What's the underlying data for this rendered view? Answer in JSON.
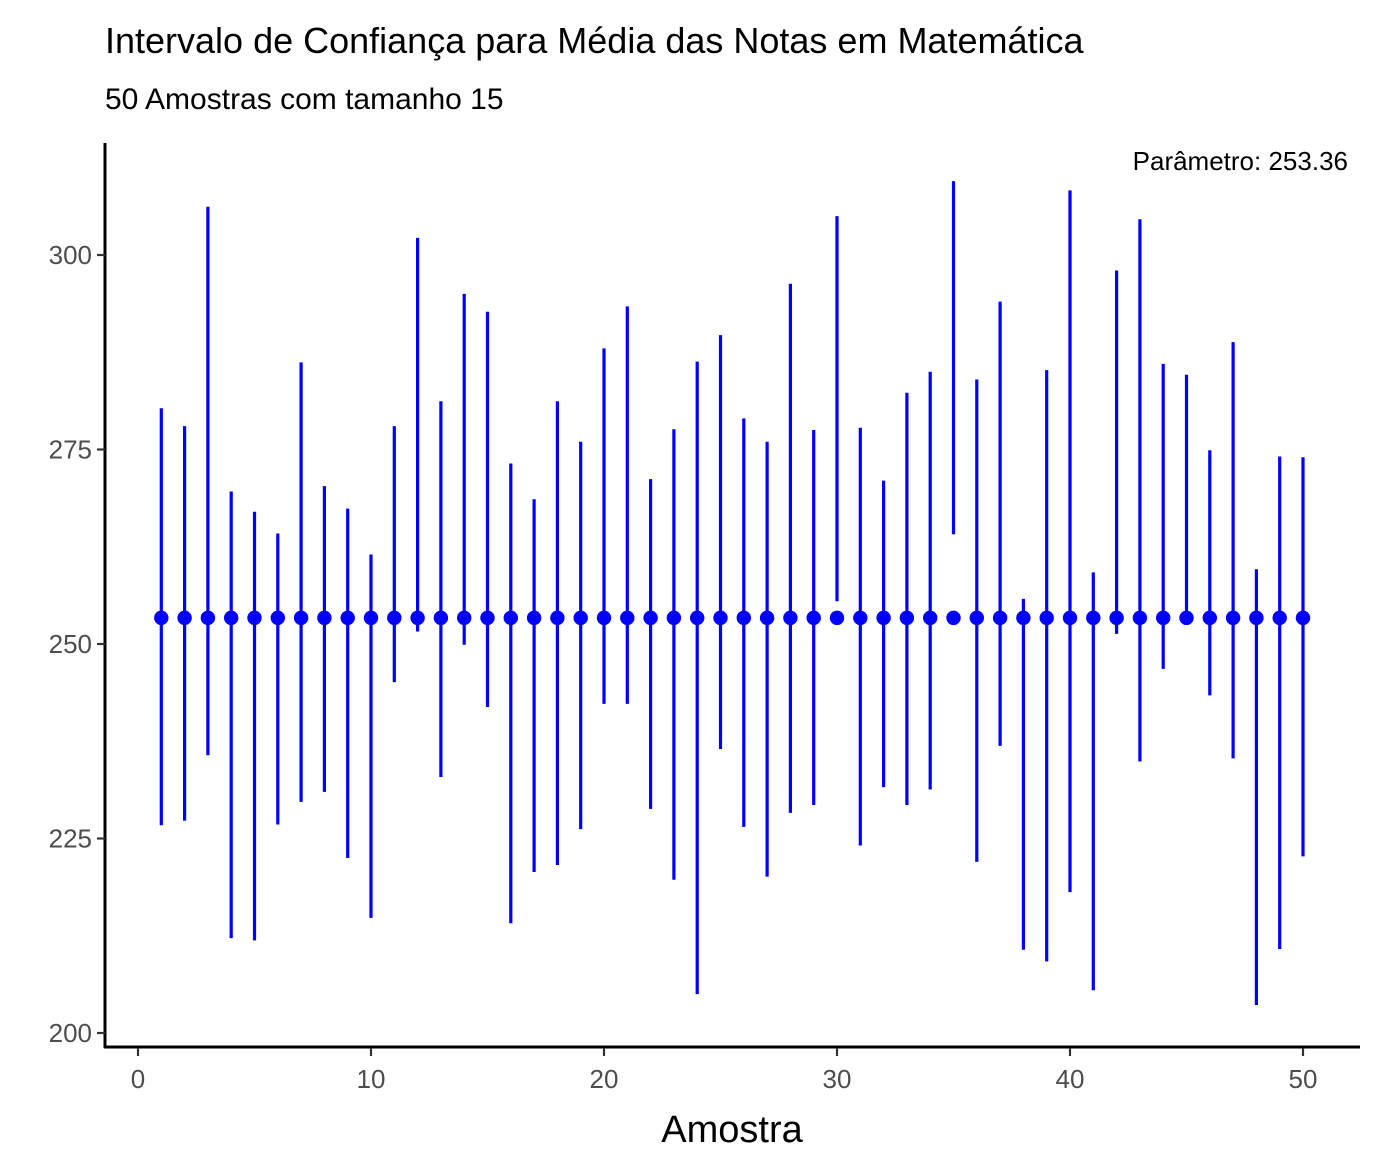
{
  "chart_data": {
    "type": "errorbar",
    "title": "Intervalo de Confiança para Média das Notas em Matemática",
    "subtitle": "50 Amostras com tamanho 15",
    "xlabel": "Amostra",
    "ylabel": "",
    "xlim": [
      0,
      50
    ],
    "ylim": [
      200,
      310
    ],
    "x_ticks": [
      0,
      10,
      20,
      30,
      40,
      50
    ],
    "y_ticks": [
      200,
      225,
      250,
      275,
      300
    ],
    "grid": false,
    "parameter_label": "Parâmetro: 253.36",
    "parameter": 253.36,
    "colors": {
      "series": "#0000ff",
      "axis": "#000000",
      "tick_text": "#4d4d4d"
    },
    "x": [
      1,
      2,
      3,
      4,
      5,
      6,
      7,
      8,
      9,
      10,
      11,
      12,
      13,
      14,
      15,
      16,
      17,
      18,
      19,
      20,
      21,
      22,
      23,
      24,
      25,
      26,
      27,
      28,
      29,
      30,
      31,
      32,
      33,
      34,
      35,
      36,
      37,
      38,
      39,
      40,
      41,
      42,
      43,
      44,
      45,
      46,
      47,
      48,
      49,
      50
    ],
    "lower": [
      226.7,
      227.3,
      235.7,
      212.2,
      211.9,
      226.8,
      229.7,
      231.0,
      222.5,
      214.8,
      245.1,
      251.6,
      232.9,
      249.9,
      241.9,
      214.1,
      220.7,
      221.6,
      226.2,
      242.3,
      242.3,
      228.8,
      219.7,
      205.0,
      236.5,
      226.5,
      220.1,
      228.3,
      229.3,
      255.5,
      224.1,
      231.6,
      229.3,
      231.3,
      264.1,
      222.0,
      236.9,
      210.7,
      209.2,
      218.1,
      205.5,
      251.3,
      234.9,
      246.8,
      253.4,
      243.4,
      235.3,
      203.6,
      210.8,
      222.7
    ],
    "upper": [
      280.3,
      278.0,
      306.2,
      269.6,
      267.0,
      264.2,
      286.2,
      270.3,
      267.4,
      261.5,
      278.0,
      302.2,
      281.2,
      295.0,
      292.7,
      273.2,
      268.6,
      281.2,
      276.0,
      288.0,
      293.4,
      271.2,
      277.6,
      286.3,
      289.7,
      279.0,
      276.0,
      296.3,
      277.5,
      305.0,
      277.8,
      271.0,
      282.3,
      285.0,
      309.5,
      284.0,
      294.0,
      255.8,
      285.2,
      308.3,
      259.2,
      298.0,
      304.6,
      286.0,
      284.6,
      274.9,
      288.8,
      259.6,
      274.1,
      274.0
    ],
    "point": [
      253.36,
      253.36,
      253.36,
      253.36,
      253.36,
      253.36,
      253.36,
      253.36,
      253.36,
      253.36,
      253.36,
      253.36,
      253.36,
      253.36,
      253.36,
      253.36,
      253.36,
      253.36,
      253.36,
      253.36,
      253.36,
      253.36,
      253.36,
      253.36,
      253.36,
      253.36,
      253.36,
      253.36,
      253.36,
      253.36,
      253.36,
      253.36,
      253.36,
      253.36,
      253.36,
      253.36,
      253.36,
      253.36,
      253.36,
      253.36,
      253.36,
      253.36,
      253.36,
      253.36,
      253.36,
      253.36,
      253.36,
      253.36,
      253.36,
      253.36
    ]
  }
}
